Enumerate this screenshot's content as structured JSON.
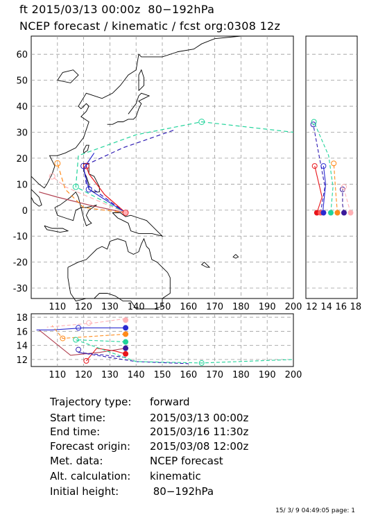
{
  "header": {
    "line1": "ft 2015/03/13 00:00z  80−192hPa",
    "line2": "NCEP forecast / kinematic / fcst org:0308 12z"
  },
  "chart_data": {
    "type": "line",
    "title": "ft 2015/03/13 00:00z  80−192hPa",
    "subtitle": "NCEP forecast / kinematic / fcst org:0308 12z",
    "panels": {
      "map": {
        "xlim": [
          100,
          200
        ],
        "ylim": [
          -34,
          67
        ],
        "xticks": [
          110,
          120,
          130,
          140,
          150,
          160,
          170,
          180,
          190,
          200
        ],
        "yticks": [
          -30,
          -20,
          -10,
          0,
          10,
          20,
          30,
          40,
          50,
          60
        ],
        "xlabel": "",
        "ylabel": "",
        "grid": true
      },
      "side": {
        "xlim": [
          11.2,
          18.2
        ],
        "xticks": [
          12,
          14,
          16,
          18
        ],
        "grid": true
      },
      "bottom": {
        "xlim": [
          100,
          200
        ],
        "ylim": [
          11,
          18.5
        ],
        "xticks": [
          110,
          120,
          130,
          140,
          150,
          160,
          170,
          180,
          190,
          200
        ],
        "yticks": [
          12,
          14,
          16,
          18
        ],
        "grid": true
      }
    },
    "series": [
      {
        "color": "#e8141a",
        "dash": "none",
        "lonlat": [
          [
            136,
            -1
          ],
          [
            128,
            6
          ],
          [
            122,
            14
          ],
          [
            121,
            17
          ]
        ],
        "alt": [
          [
            136,
            12.8
          ],
          [
            132,
            13.2
          ],
          [
            125,
            13.6
          ],
          [
            121,
            11.8
          ]
        ]
      },
      {
        "color": "#b04050",
        "dash": "none",
        "lonlat": [
          [
            136,
            -1
          ],
          [
            122,
            2
          ],
          [
            110,
            5
          ],
          [
            103,
            7
          ]
        ],
        "alt": [
          [
            136,
            13.6
          ],
          [
            126,
            13.0
          ],
          [
            115,
            12.6
          ],
          [
            103,
            16.2
          ]
        ]
      },
      {
        "color": "#2a2ad0",
        "dash": "none",
        "lonlat": [
          [
            136,
            -1
          ],
          [
            122,
            8
          ],
          [
            120,
            16
          ],
          [
            124,
            22
          ]
        ],
        "alt": [
          [
            136,
            16.5
          ],
          [
            120,
            16.5
          ],
          [
            108,
            16.2
          ],
          [
            102,
            16.2
          ]
        ]
      },
      {
        "color": "#2d1ab3",
        "dash": "dashed",
        "lonlat": [
          [
            136,
            -1
          ],
          [
            121,
            10
          ],
          [
            120,
            17
          ],
          [
            135,
            24
          ],
          [
            155,
            31
          ]
        ],
        "alt": [
          [
            136,
            12.3
          ],
          [
            118,
            13
          ],
          [
            140,
            11.7
          ],
          [
            160,
            11.4
          ]
        ]
      },
      {
        "color": "#20d39a",
        "dash": "dashed",
        "lonlat": [
          [
            136,
            -1
          ],
          [
            117,
            9
          ],
          [
            118,
            21
          ],
          [
            140,
            29
          ],
          [
            165,
            34
          ],
          [
            200,
            30
          ]
        ],
        "alt": [
          [
            136,
            14.5
          ],
          [
            117,
            14.8
          ],
          [
            140,
            11.7
          ],
          [
            165,
            11.5
          ],
          [
            200,
            12
          ]
        ]
      },
      {
        "color": "#ff8a1a",
        "dash": "dashed",
        "lonlat": [
          [
            136,
            -1
          ],
          [
            120,
            1
          ],
          [
            113,
            8
          ],
          [
            110,
            18
          ]
        ],
        "alt": [
          [
            136,
            15.6
          ],
          [
            120,
            15.2
          ],
          [
            112,
            15
          ],
          [
            108,
            16.8
          ]
        ]
      },
      {
        "color": "#ffb0b4",
        "dash": "dashed",
        "lonlat": [
          [
            136,
            -1
          ],
          [
            113,
            9
          ],
          [
            108,
            13
          ]
        ],
        "alt": [
          [
            136,
            17.8
          ],
          [
            124,
            17.2
          ],
          [
            106,
            16.6
          ]
        ]
      }
    ],
    "markers": [
      {
        "color": "#e8141a",
        "lonlat": [
          121,
          17
        ],
        "alt": [
          121,
          11.8
        ]
      },
      {
        "color": "#2a2ad0",
        "lonlat": [
          122,
          8
        ],
        "alt": [
          118,
          16.5
        ]
      },
      {
        "color": "#2d1ab3",
        "lonlat": [
          120,
          17
        ],
        "alt": [
          118,
          13.4
        ]
      },
      {
        "color": "#20d39a",
        "lonlat": [
          165,
          34
        ],
        "alt": [
          165,
          11.5
        ]
      },
      {
        "color": "#20d39a",
        "lonlat": [
          117,
          9
        ],
        "alt": [
          117,
          14.8
        ]
      },
      {
        "color": "#ff8a1a",
        "lonlat": [
          110,
          18
        ],
        "alt": [
          112,
          15
        ]
      },
      {
        "color": "#ffb0b4",
        "lonlat": [
          108,
          13
        ],
        "alt": [
          122,
          17.2
        ]
      }
    ],
    "end_dots": [
      "#e8141a",
      "#3a1a9a",
      "#2a2ad0",
      "#20d39a",
      "#ff8a1a",
      "#ffb0b4"
    ]
  },
  "info": {
    "rows": [
      {
        "label": "Trajectory type:",
        "value": "forward"
      },
      {
        "label": "Start time:",
        "value": "2015/03/13 00:00z"
      },
      {
        "label": "End time:",
        "value": "2015/03/16 11:30z"
      },
      {
        "label": "Forecast origin:",
        "value": "2015/03/08 12:00z"
      },
      {
        "label": "Met. data:",
        "value": "NCEP forecast"
      },
      {
        "label": "Alt. calculation:",
        "value": "kinematic"
      },
      {
        "label": "Initial height:",
        "value": " 80−192hPa"
      }
    ]
  },
  "footer": "15/ 3/ 9 04:49:05 page: 1"
}
